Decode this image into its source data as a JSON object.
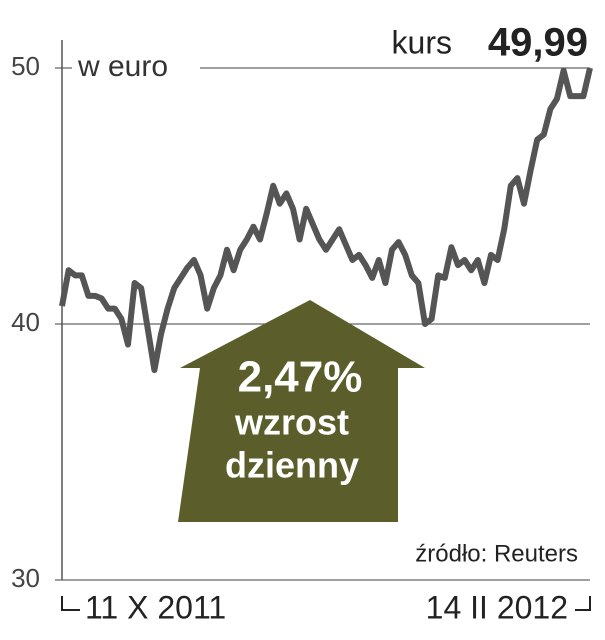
{
  "chart_data": {
    "type": "line",
    "title": "kurs",
    "value_label": "49,99",
    "ylabel": "w euro",
    "annotation": {
      "value": "2,47%",
      "line1": "wzrost",
      "line2": "dzienny"
    },
    "source": "źródło: Reuters",
    "categories": [
      "11 X 2011",
      null,
      null,
      null,
      null,
      null,
      null,
      null,
      null,
      null,
      null,
      null,
      null,
      null,
      null,
      null,
      null,
      null,
      null,
      null,
      null,
      null,
      null,
      null,
      null,
      null,
      null,
      null,
      null,
      null,
      null,
      null,
      null,
      null,
      null,
      null,
      null,
      null,
      null,
      null,
      null,
      null,
      null,
      null,
      null,
      null,
      null,
      null,
      null,
      null,
      null,
      null,
      null,
      null,
      null,
      null,
      null,
      null,
      null,
      null,
      null,
      null,
      null,
      null,
      null,
      null,
      null,
      null,
      null,
      null,
      null,
      null,
      null,
      null,
      null,
      null,
      null,
      null,
      null,
      null,
      "14 II 2012"
    ],
    "series": [
      {
        "name": "kurs",
        "color": "#555555",
        "values": [
          40.7,
          42.1,
          41.9,
          41.9,
          41.1,
          41.1,
          41.0,
          40.6,
          40.6,
          40.2,
          39.2,
          41.6,
          41.4,
          39.8,
          38.2,
          39.6,
          40.6,
          41.4,
          41.8,
          42.2,
          42.5,
          41.9,
          40.6,
          41.4,
          41.9,
          42.9,
          42.1,
          42.9,
          43.3,
          43.8,
          43.3,
          44.3,
          45.4,
          44.7,
          45.1,
          44.5,
          43.3,
          44.5,
          43.9,
          43.3,
          42.9,
          43.3,
          43.7,
          43.1,
          42.5,
          42.7,
          42.3,
          41.8,
          42.5,
          41.6,
          42.9,
          43.2,
          42.7,
          41.9,
          41.6,
          40.0,
          40.2,
          41.9,
          41.8,
          43.0,
          42.3,
          42.5,
          42.1,
          42.5,
          41.6,
          42.7,
          42.5,
          43.7,
          45.4,
          45.7,
          44.7,
          46.0,
          47.2,
          47.4,
          48.4,
          48.8,
          49.9,
          48.9,
          48.9,
          48.9,
          50.0
        ]
      }
    ],
    "ylim": [
      30,
      50
    ],
    "yticks": [
      30,
      40,
      50
    ],
    "grid": true
  }
}
